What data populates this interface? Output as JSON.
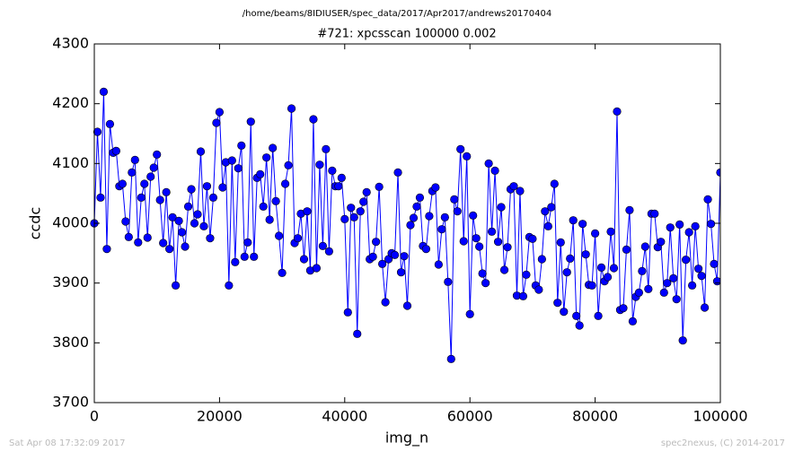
{
  "chart_data": {
    "type": "line",
    "suptitle": "/home/beams/8IDIUSER/spec_data/2017/Apr2017/andrews20170404",
    "title": "#721: xpcsscan 100000 0.002",
    "x_label": "img_n",
    "y_label": "ccdc",
    "footer_left": "Sat Apr 08 17:32:09 2017",
    "footer_right": "spec2nexus, (C) 2014-2017",
    "color": "#0000ff",
    "marker": "o",
    "xlim": [
      0,
      100000
    ],
    "xticks": [
      0,
      20000,
      40000,
      60000,
      80000,
      100000
    ],
    "ylim": [
      3700,
      4300
    ],
    "yticks": [
      3700,
      3800,
      3900,
      4000,
      4100,
      4200,
      4300
    ],
    "x": [
      0,
      500,
      1000,
      1500,
      2000,
      2500,
      3000,
      3500,
      4000,
      4500,
      5000,
      5500,
      6000,
      6500,
      7000,
      7500,
      8000,
      8500,
      9000,
      9500,
      10000,
      10500,
      11000,
      11500,
      12000,
      12500,
      13000,
      13500,
      14000,
      14500,
      15000,
      15500,
      16000,
      16500,
      17000,
      17500,
      18000,
      18500,
      19000,
      19500,
      20000,
      20500,
      21000,
      21500,
      22000,
      22500,
      23000,
      23500,
      24000,
      24500,
      25000,
      25500,
      26000,
      26500,
      27000,
      27500,
      28000,
      28500,
      29000,
      29500,
      30000,
      30500,
      31000,
      31500,
      32000,
      32500,
      33000,
      33500,
      34000,
      34500,
      35000,
      35500,
      36000,
      36500,
      37000,
      37500,
      38000,
      38500,
      39000,
      39500,
      40000,
      40500,
      41000,
      41500,
      42000,
      42500,
      43000,
      43500,
      44000,
      44500,
      45000,
      45500,
      46000,
      46500,
      47000,
      47500,
      48000,
      48500,
      49000,
      49500,
      50000,
      50500,
      51000,
      51500,
      52000,
      52500,
      53000,
      53500,
      54000,
      54500,
      55000,
      55500,
      56000,
      56500,
      57000,
      57500,
      58000,
      58500,
      59000,
      59500,
      60000,
      60500,
      61000,
      61500,
      62000,
      62500,
      63000,
      63500,
      64000,
      64500,
      65000,
      65500,
      66000,
      66500,
      67000,
      67500,
      68000,
      68500,
      69000,
      69500,
      70000,
      70500,
      71000,
      71500,
      72000,
      72500,
      73000,
      73500,
      74000,
      74500,
      75000,
      75500,
      76000,
      76500,
      77000,
      77500,
      78000,
      78500,
      79000,
      79500,
      80000,
      80500,
      81000,
      81500,
      82000,
      82500,
      83000,
      83500,
      84000,
      84500,
      85000,
      85500,
      86000,
      86500,
      87000,
      87500,
      88000,
      88500,
      89000,
      89500,
      90000,
      90500,
      91000,
      91500,
      92000,
      92500,
      93000,
      93500,
      94000,
      94500,
      95000,
      95500,
      96000,
      96500,
      97000,
      97500,
      98000,
      98500,
      99000,
      99500,
      100000
    ],
    "values": [
      4000,
      4153,
      4043,
      4220,
      3957,
      4166,
      4118,
      4121,
      4062,
      4066,
      4003,
      3977,
      4085,
      4106,
      3968,
      4043,
      4066,
      3976,
      4078,
      4093,
      4115,
      4039,
      3967,
      4052,
      3957,
      4010,
      3896,
      4004,
      3985,
      3961,
      4028,
      4057,
      4000,
      4015,
      4120,
      3995,
      4062,
      3975,
      4043,
      4168,
      4186,
      4060,
      4102,
      3896,
      4105,
      3935,
      4092,
      4130,
      3944,
      3968,
      4170,
      3944,
      4076,
      4082,
      4028,
      4110,
      4006,
      4126,
      4037,
      3979,
      3917,
      4066,
      4097,
      4192,
      3967,
      3975,
      4016,
      3940,
      4020,
      3921,
      4174,
      3925,
      4098,
      3962,
      4124,
      3953,
      4088,
      4062,
      4062,
      4076,
      4007,
      3851,
      4026,
      4010,
      3815,
      4020,
      4036,
      4052,
      3940,
      3944,
      3969,
      4061,
      3932,
      3868,
      3940,
      3950,
      3947,
      4085,
      3918,
      3945,
      3862,
      3997,
      4009,
      4028,
      4043,
      3962,
      3957,
      4012,
      4054,
      4060,
      3931,
      3990,
      4010,
      3902,
      3773,
      4040,
      4020,
      4124,
      3970,
      4112,
      3848,
      4013,
      3975,
      3961,
      3916,
      3900,
      4100,
      3986,
      4088,
      3969,
      4027,
      3922,
      3960,
      4057,
      4062,
      3879,
      4054,
      3878,
      3914,
      3977,
      3974,
      3896,
      3889,
      3940,
      4020,
      3995,
      4027,
      4066,
      3867,
      3968,
      3852,
      3918,
      3941,
      4005,
      3845,
      3829,
      3999,
      3948,
      3897,
      3896,
      3983,
      3845,
      3926,
      3903,
      3910,
      3986,
      3925,
      4187,
      3855,
      3858,
      3956,
      4022,
      3836,
      3877,
      3884,
      3920,
      3961,
      3890,
      4016,
      4016,
      3960,
      3969,
      3884,
      3900,
      3993,
      3908,
      3873,
      3998,
      3804,
      3939,
      3985,
      3896,
      3995,
      3924,
      3912,
      3859,
      4040,
      3999,
      3932,
      3903,
      4085
    ]
  }
}
